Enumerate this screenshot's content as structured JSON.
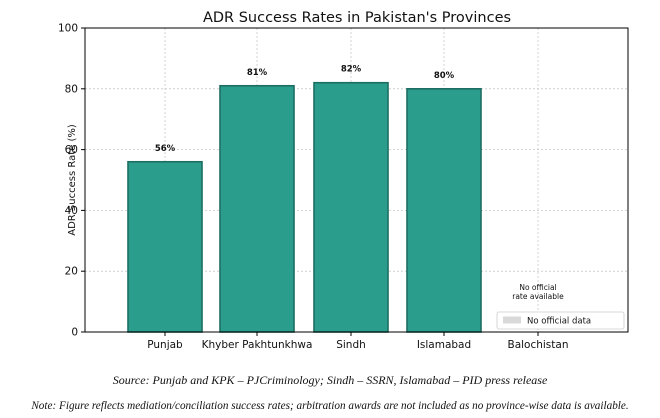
{
  "chart_data": {
    "type": "bar",
    "title": "ADR Success Rates in Pakistan's Provinces",
    "xlabel": "",
    "ylabel": "ADR Success Rate (%)",
    "ylim": [
      0,
      100
    ],
    "yticks": [
      "0",
      "20",
      "40",
      "60",
      "80",
      "100"
    ],
    "categories": [
      "Punjab",
      "Khyber Pakhtunkhwa",
      "Sindh",
      "Islamabad",
      "Balochistan"
    ],
    "values": [
      56,
      81,
      82,
      80,
      null
    ],
    "data_labels": [
      "56%",
      "81%",
      "82%",
      "80%",
      ""
    ],
    "bar_color": "#2a9d8c",
    "bar_edge_color": "#1d6e62",
    "grid": true,
    "no_data_annotation": {
      "category": "Balochistan",
      "lines": [
        "No official",
        "rate available"
      ]
    },
    "legend": {
      "placement": "lower-right",
      "entries": [
        {
          "label": "No official data",
          "color": "#d9d9d9"
        }
      ]
    }
  },
  "captions": {
    "source": "Source: Punjab and KPK – PJCriminology; Sindh – SSRN, Islamabad – PID press release",
    "note": "Note: Figure reflects mediation/conciliation success rates; arbitration awards are not included as no province-wise data is available."
  }
}
